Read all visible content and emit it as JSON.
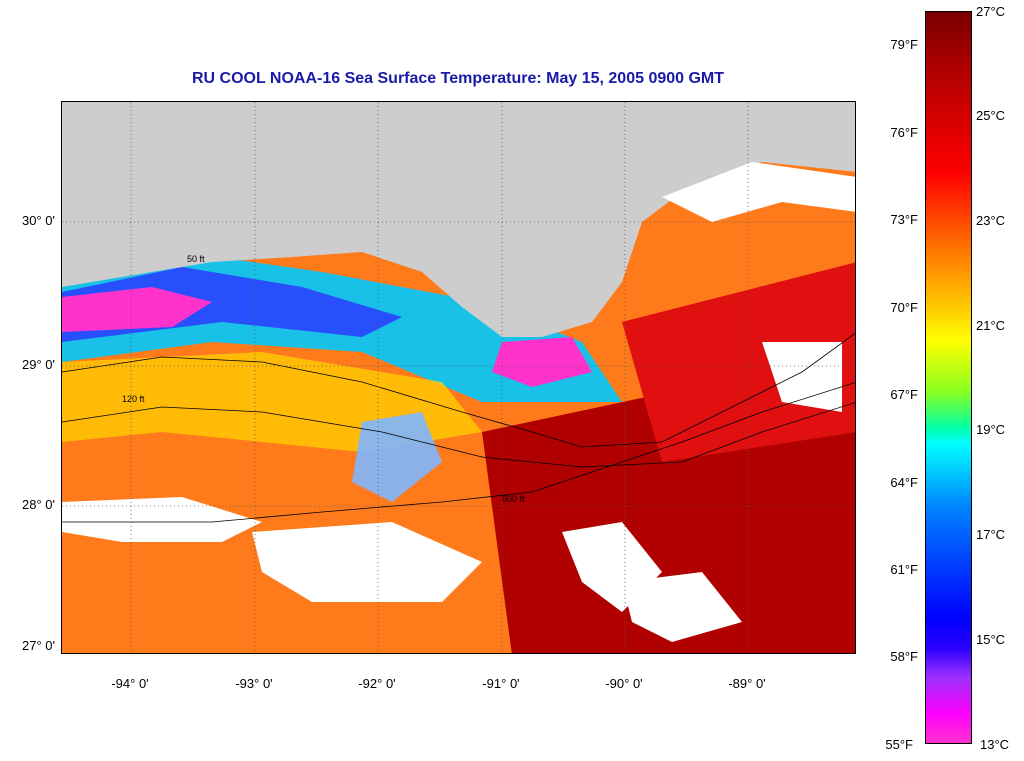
{
  "title": "RU COOL  NOAA-16  Sea Surface Temperature:  May 15, 2005 0900 GMT",
  "latitude_labels": [
    "30° 0'",
    "29° 0'",
    "28° 0'",
    "27° 0'"
  ],
  "longitude_labels": [
    "-94° 0'",
    "-93° 0'",
    "-92° 0'",
    "-91° 0'",
    "-90° 0'",
    "-89° 0'"
  ],
  "colorbar": {
    "celsius_labels": [
      "27°C",
      "25°C",
      "23°C",
      "21°C",
      "19°C",
      "17°C",
      "15°C",
      "13°C"
    ],
    "fahrenheit_labels": [
      "79°F",
      "76°F",
      "73°F",
      "70°F",
      "67°F",
      "64°F",
      "61°F",
      "58°F",
      "55°F"
    ],
    "colors": [
      "#7a0000",
      "#ff0000",
      "#ff7a00",
      "#ffff00",
      "#00ffff",
      "#0000ff",
      "#ff00ff"
    ]
  },
  "contour_labels": [
    "50 ft",
    "120 ft",
    "600 ft"
  ],
  "land_color": "#cdcdcd",
  "cloud_color": "#ffffff"
}
